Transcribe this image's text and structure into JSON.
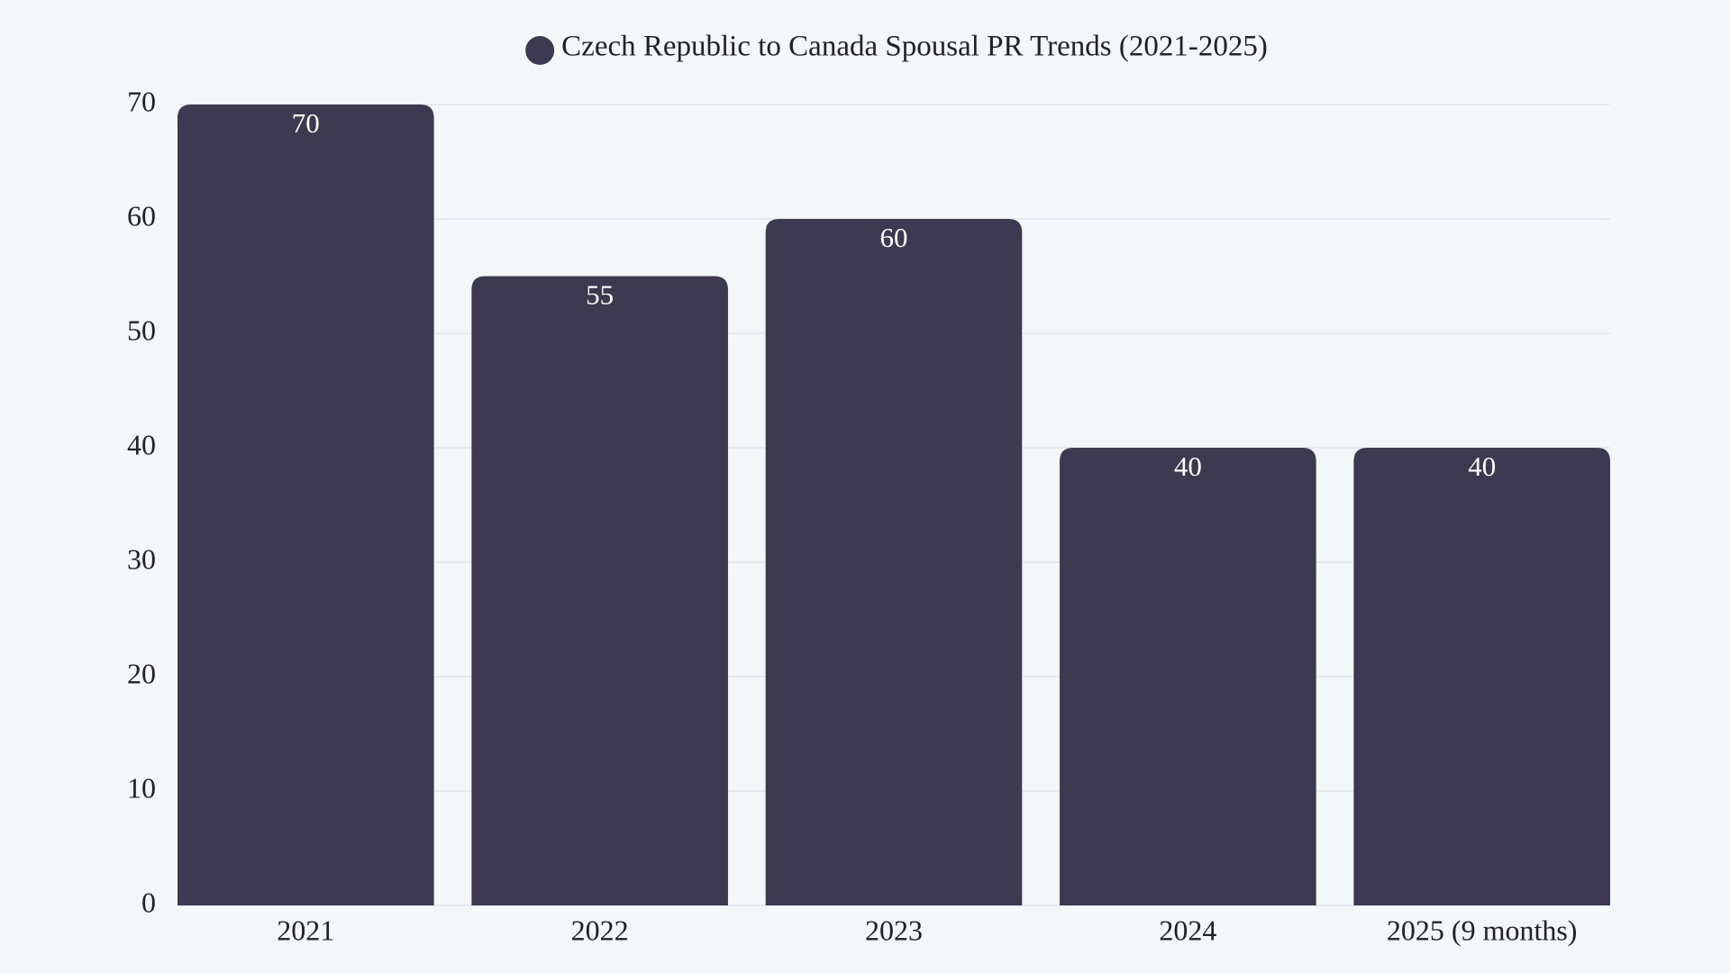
{
  "chart_data": {
    "type": "bar",
    "categories": [
      "2021",
      "2022",
      "2023",
      "2024",
      "2025 (9 months)"
    ],
    "series": [
      {
        "name": "Czech Republic to Canada Spousal PR Trends (2021-2025)",
        "color": "#3d3950",
        "values": [
          70,
          55,
          60,
          40,
          40
        ]
      }
    ],
    "ylim": [
      0,
      70
    ],
    "yticks": [
      0,
      10,
      20,
      30,
      40,
      50,
      60,
      70
    ],
    "grid": true,
    "legend": "top"
  }
}
